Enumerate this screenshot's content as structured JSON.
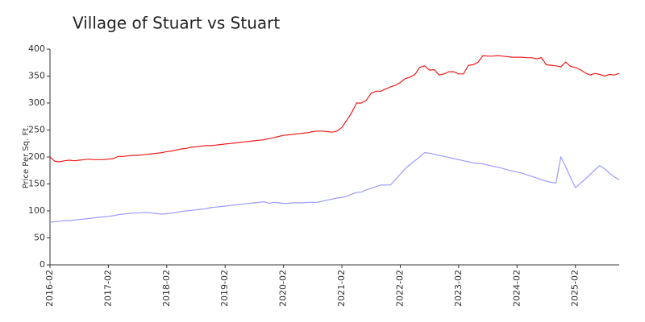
{
  "chart_data": {
    "type": "line",
    "title": "Village of Stuart vs Stuart",
    "y_label": "Price Per Sq. Ft.",
    "x": [
      "2016-02",
      "2016-03",
      "2016-04",
      "2016-05",
      "2016-06",
      "2016-07",
      "2016-08",
      "2016-09",
      "2016-10",
      "2016-11",
      "2016-12",
      "2017-01",
      "2017-02",
      "2017-03",
      "2017-04",
      "2017-05",
      "2017-06",
      "2017-07",
      "2017-08",
      "2017-09",
      "2017-10",
      "2017-11",
      "2017-12",
      "2018-01",
      "2018-02",
      "2018-03",
      "2018-04",
      "2018-05",
      "2018-06",
      "2018-07",
      "2018-08",
      "2018-09",
      "2018-10",
      "2018-11",
      "2018-12",
      "2019-01",
      "2019-02",
      "2019-03",
      "2019-04",
      "2019-05",
      "2019-06",
      "2019-07",
      "2019-08",
      "2019-09",
      "2019-10",
      "2019-11",
      "2019-12",
      "2020-01",
      "2020-02",
      "2020-03",
      "2020-04",
      "2020-05",
      "2020-06",
      "2020-07",
      "2020-08",
      "2020-09",
      "2020-10",
      "2020-11",
      "2020-12",
      "2021-01",
      "2021-02",
      "2021-03",
      "2021-04",
      "2021-05",
      "2021-06",
      "2021-07",
      "2021-08",
      "2021-09",
      "2021-10",
      "2021-11",
      "2021-12",
      "2022-01",
      "2022-02",
      "2022-03",
      "2022-04",
      "2022-05",
      "2022-06",
      "2022-07",
      "2022-08",
      "2022-09",
      "2022-10",
      "2022-11",
      "2022-12",
      "2023-01",
      "2023-02",
      "2023-03",
      "2023-04",
      "2023-05",
      "2023-06",
      "2023-07",
      "2023-08",
      "2023-09",
      "2023-10",
      "2023-11",
      "2023-12",
      "2024-01",
      "2024-02",
      "2024-03",
      "2024-04",
      "2024-05",
      "2024-06",
      "2024-07",
      "2024-08",
      "2024-09",
      "2024-10",
      "2024-11",
      "2024-12",
      "2025-01",
      "2025-02",
      "2025-03",
      "2025-04",
      "2025-05",
      "2025-06",
      "2025-07",
      "2025-08",
      "2025-09",
      "2025-10",
      "2025-11"
    ],
    "series": [
      {
        "color": "#ee1c1c",
        "values": [
          200,
          192,
          191,
          193,
          194,
          193,
          194,
          195,
          196,
          195,
          195,
          195,
          196,
          197,
          201,
          201,
          202,
          203,
          203,
          204,
          205,
          206,
          207,
          208,
          210,
          211,
          213,
          215,
          216,
          218,
          219,
          220,
          221,
          221,
          222,
          223,
          224,
          225,
          226,
          227,
          228,
          229,
          230,
          231,
          232,
          234,
          236,
          238,
          240,
          241,
          242,
          243,
          244,
          245,
          247,
          248,
          248,
          247,
          246,
          248,
          255,
          268,
          282,
          300,
          300,
          305,
          318,
          322,
          322,
          326,
          330,
          333,
          338,
          345,
          348,
          353,
          366,
          369,
          361,
          362,
          352,
          354,
          358,
          358,
          354,
          354,
          370,
          371,
          376,
          388,
          387,
          387,
          388,
          387,
          386,
          385,
          385,
          385,
          384,
          384,
          382,
          384,
          371,
          370,
          369,
          367,
          376,
          368,
          366,
          362,
          356,
          352,
          355,
          353,
          350,
          353,
          352,
          355
        ]
      },
      {
        "color": "#9a9aff",
        "values": [
          79,
          80,
          81,
          82,
          82,
          83,
          84,
          85,
          86,
          87,
          88,
          89,
          90,
          91,
          93,
          94,
          95,
          96,
          96,
          97,
          97,
          96,
          95,
          94,
          95,
          96,
          97,
          99,
          100,
          101,
          102,
          103,
          104,
          106,
          107,
          108,
          109,
          110,
          111,
          112,
          113,
          114,
          115,
          116,
          117,
          114,
          116,
          115,
          114,
          114,
          115,
          115,
          115,
          116,
          116,
          116,
          118,
          120,
          122,
          124,
          125,
          127,
          131,
          134,
          135,
          139,
          142,
          145,
          148,
          148,
          148,
          158,
          168,
          178,
          186,
          193,
          200,
          208,
          207,
          205,
          203,
          201,
          199,
          197,
          195,
          193,
          191,
          189,
          188,
          187,
          185,
          183,
          181,
          179,
          176,
          174,
          172,
          170,
          167,
          164,
          161,
          158,
          155,
          153,
          152,
          200,
          182,
          162,
          143,
          151,
          159,
          167,
          176,
          184,
          178,
          170,
          163,
          158
        ]
      }
    ],
    "xlim": [
      "2016-02",
      "2025-11"
    ],
    "xticks": [
      "2016-02",
      "2017-02",
      "2018-02",
      "2019-02",
      "2020-02",
      "2021-02",
      "2022-02",
      "2023-02",
      "2024-02",
      "2025-02"
    ],
    "ylim": [
      0,
      400
    ],
    "yticks": [
      0,
      50,
      100,
      150,
      200,
      250,
      300,
      350,
      400
    ],
    "grid": false
  }
}
